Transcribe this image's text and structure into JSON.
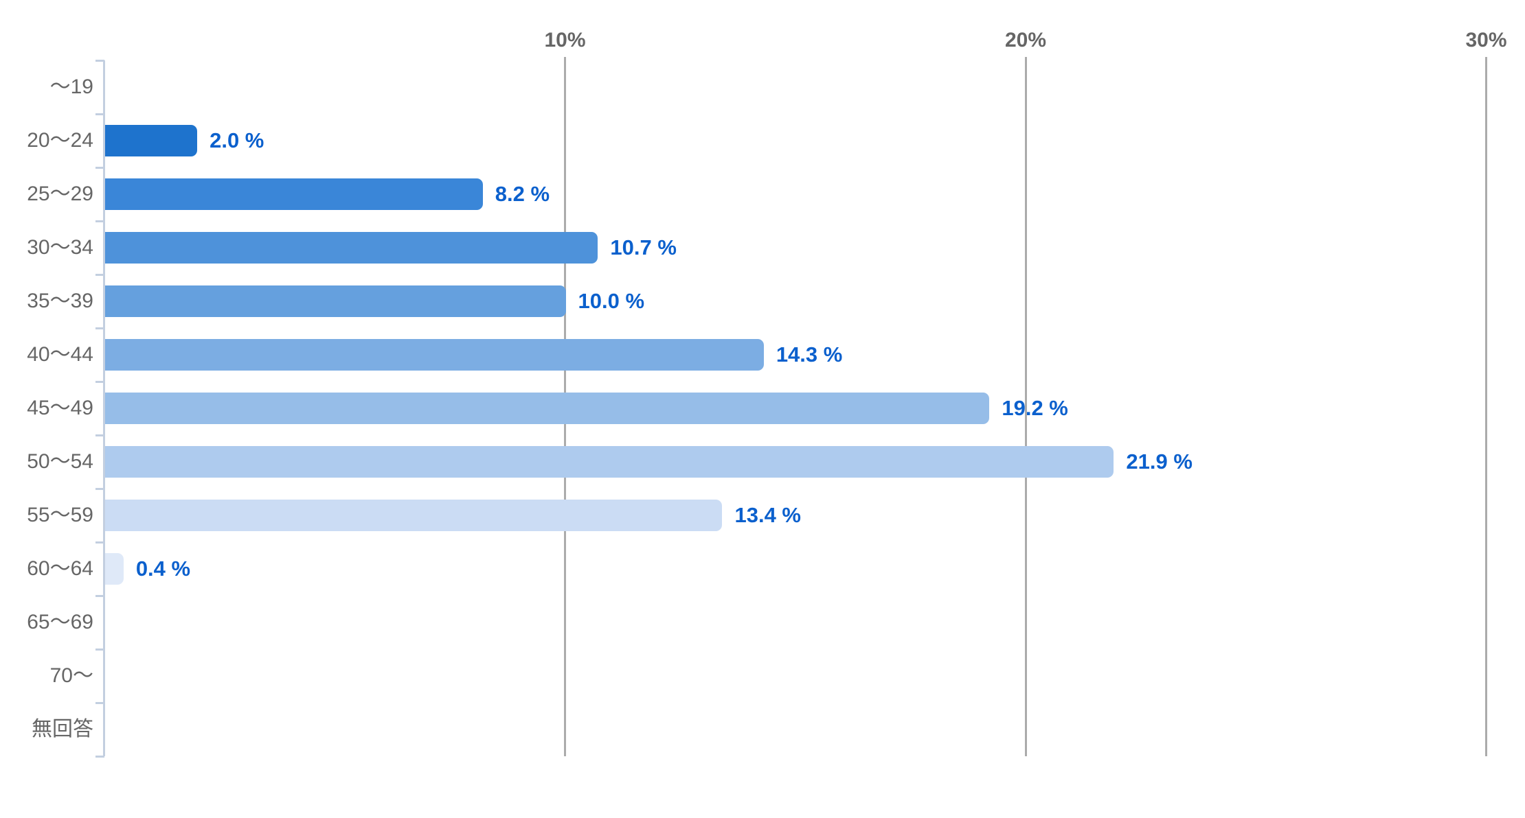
{
  "chart_data": {
    "type": "bar",
    "orientation": "horizontal",
    "title": "",
    "categories": [
      "〜19",
      "20〜24",
      "25〜29",
      "30〜34",
      "35〜39",
      "40〜44",
      "45〜49",
      "50〜54",
      "55〜59",
      "60〜64",
      "65〜69",
      "70〜",
      "無回答"
    ],
    "values": [
      null,
      2.0,
      8.2,
      10.7,
      10.0,
      14.3,
      19.2,
      21.9,
      13.4,
      0.4,
      null,
      null,
      null
    ],
    "value_labels": [
      "",
      "2.0 %",
      "8.2 %",
      "10.7 %",
      "10.0 %",
      "14.3 %",
      "19.2 %",
      "21.9 %",
      "13.4 %",
      "0.4 %",
      "",
      "",
      ""
    ],
    "bar_colors": [
      "",
      "#1e73cd",
      "#3a86d8",
      "#4e92da",
      "#65a0de",
      "#7cade3",
      "#96bde8",
      "#aecbee",
      "#cbdcf4",
      "#dfe9f8",
      "",
      "",
      ""
    ],
    "x_axis": {
      "ticks": [
        {
          "label": "10%",
          "value": 10
        },
        {
          "label": "20%",
          "value": 20
        },
        {
          "label": "30%",
          "value": 30
        }
      ],
      "min": 0,
      "max": 30
    },
    "ylabel": "",
    "xlabel": "",
    "grid": true,
    "legend_position": "none",
    "colors": {
      "value_label": "#0b60cd",
      "category_label": "#666666",
      "axis_tick_label": "#666666",
      "gridline": "#ababab",
      "axis_line": "#c3cfe0",
      "background": "#ffffff"
    }
  }
}
